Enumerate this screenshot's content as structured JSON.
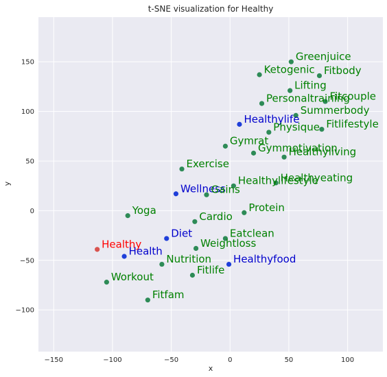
{
  "chart_data": {
    "type": "scatter",
    "title": "t-SNE visualization for Healthy",
    "xlabel": "x",
    "ylabel": "y",
    "xlim": [
      -163,
      130
    ],
    "ylim": [
      -142,
      195
    ],
    "xticks": [
      -150,
      -100,
      -50,
      0,
      50,
      100
    ],
    "yticks": [
      -100,
      -50,
      0,
      50,
      100,
      150
    ],
    "grid": true,
    "colors": {
      "background": "#eaeaf2",
      "grid": "#ffffff",
      "target": "#ff0000",
      "target_point": "#d9534f",
      "similar": "#0000cc",
      "similar_point": "#1f3fd9",
      "other": "#008000",
      "other_point": "#2e8b57"
    },
    "points": [
      {
        "label": "Healthy",
        "x": -113,
        "y": -39,
        "group": "target"
      },
      {
        "label": "Health",
        "x": -90,
        "y": -46,
        "group": "similar"
      },
      {
        "label": "Diet",
        "x": -54,
        "y": -28,
        "group": "similar"
      },
      {
        "label": "Wellness",
        "x": -46,
        "y": 17,
        "group": "similar"
      },
      {
        "label": "Healthylife",
        "x": 8,
        "y": 87,
        "group": "similar"
      },
      {
        "label": "Healthyfood",
        "x": -1,
        "y": -54,
        "group": "similar"
      },
      {
        "label": "Greenjuice",
        "x": 52,
        "y": 150,
        "group": "other"
      },
      {
        "label": "Ketogenic",
        "x": 25,
        "y": 137,
        "group": "other"
      },
      {
        "label": "Fitbody",
        "x": 76,
        "y": 136,
        "group": "other"
      },
      {
        "label": "Lifting",
        "x": 51,
        "y": 121,
        "group": "other"
      },
      {
        "label": "Personaltraining",
        "x": 27,
        "y": 108,
        "group": "other"
      },
      {
        "label": "Fitcouple",
        "x": 81,
        "y": 110,
        "group": "other"
      },
      {
        "label": "Summerbody",
        "x": 56,
        "y": 96,
        "group": "other"
      },
      {
        "label": "Physique",
        "x": 33,
        "y": 79,
        "group": "other"
      },
      {
        "label": "Fitlifestyle",
        "x": 78,
        "y": 82,
        "group": "other"
      },
      {
        "label": "Gymrat",
        "x": -4,
        "y": 65,
        "group": "other"
      },
      {
        "label": "Gymmotivation",
        "x": 20,
        "y": 58,
        "group": "other"
      },
      {
        "label": "Healthyliving",
        "x": 46,
        "y": 54,
        "group": "other"
      },
      {
        "label": "Exercise",
        "x": -41,
        "y": 42,
        "group": "other"
      },
      {
        "label": "Healthyeating",
        "x": 39,
        "y": 28,
        "group": "other"
      },
      {
        "label": "Healthylifestyle",
        "x": 3,
        "y": 25,
        "group": "other"
      },
      {
        "label": "Gains",
        "x": -20,
        "y": 16,
        "group": "other"
      },
      {
        "label": "Yoga",
        "x": -87,
        "y": -5,
        "group": "other"
      },
      {
        "label": "Protein",
        "x": 12,
        "y": -2,
        "group": "other"
      },
      {
        "label": "Cardio",
        "x": -30,
        "y": -11,
        "group": "other"
      },
      {
        "label": "Eatclean",
        "x": -4,
        "y": -28,
        "group": "other"
      },
      {
        "label": "Weightloss",
        "x": -29,
        "y": -38,
        "group": "other"
      },
      {
        "label": "Nutrition",
        "x": -58,
        "y": -54,
        "group": "other"
      },
      {
        "label": "Fitlife",
        "x": -32,
        "y": -65,
        "group": "other"
      },
      {
        "label": "Workout",
        "x": -105,
        "y": -72,
        "group": "other"
      },
      {
        "label": "Fitfam",
        "x": -70,
        "y": -90,
        "group": "other"
      }
    ]
  }
}
